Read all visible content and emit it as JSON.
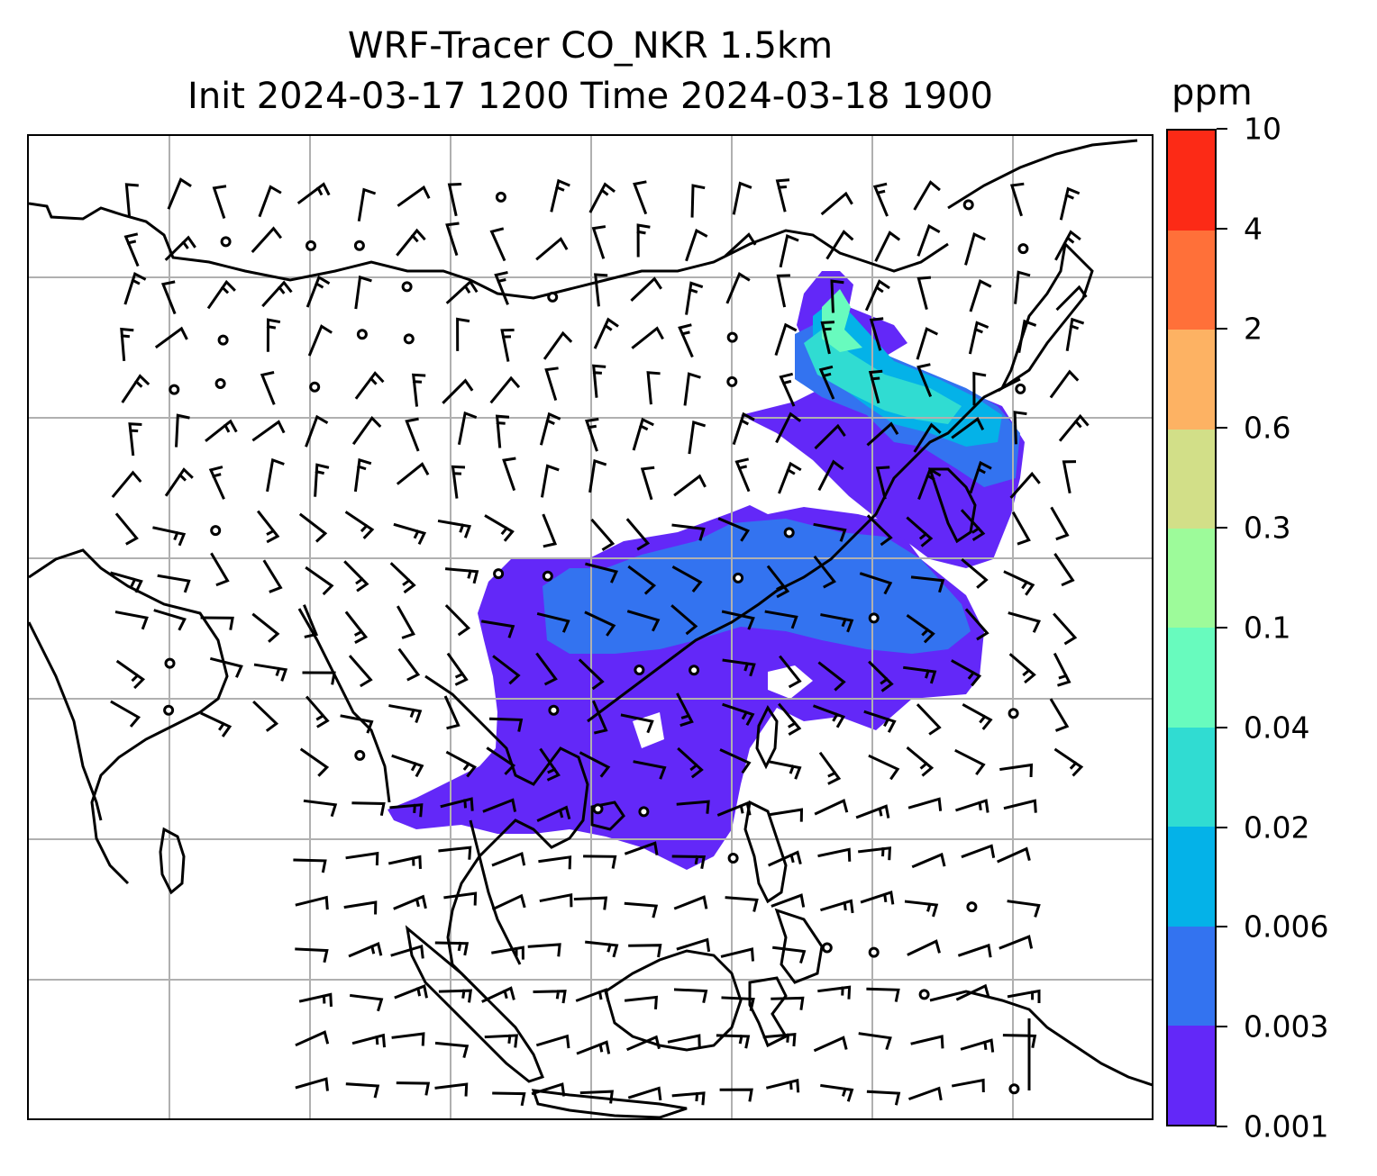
{
  "title_line1": "WRF-Tracer CO_NKR 1.5km",
  "title_line2": "Init 2024-03-17 1200 Time 2024-03-18 1900",
  "colorbar": {
    "unit": "ppm",
    "ticks": [
      "0.001",
      "0.003",
      "0.006",
      "0.02",
      "0.04",
      "0.1",
      "0.3",
      "0.6",
      "2",
      "4",
      "10"
    ],
    "colors": [
      "#6328f8",
      "#3373f0",
      "#04b2e8",
      "#30dcd2",
      "#68fbbe",
      "#9dfb9a",
      "#d2df88",
      "#fdb263",
      "#ff7039",
      "#fc2a16"
    ]
  },
  "map": {
    "gridlines": "on",
    "wind_barbs": "shown",
    "coastlines": "shown"
  }
}
